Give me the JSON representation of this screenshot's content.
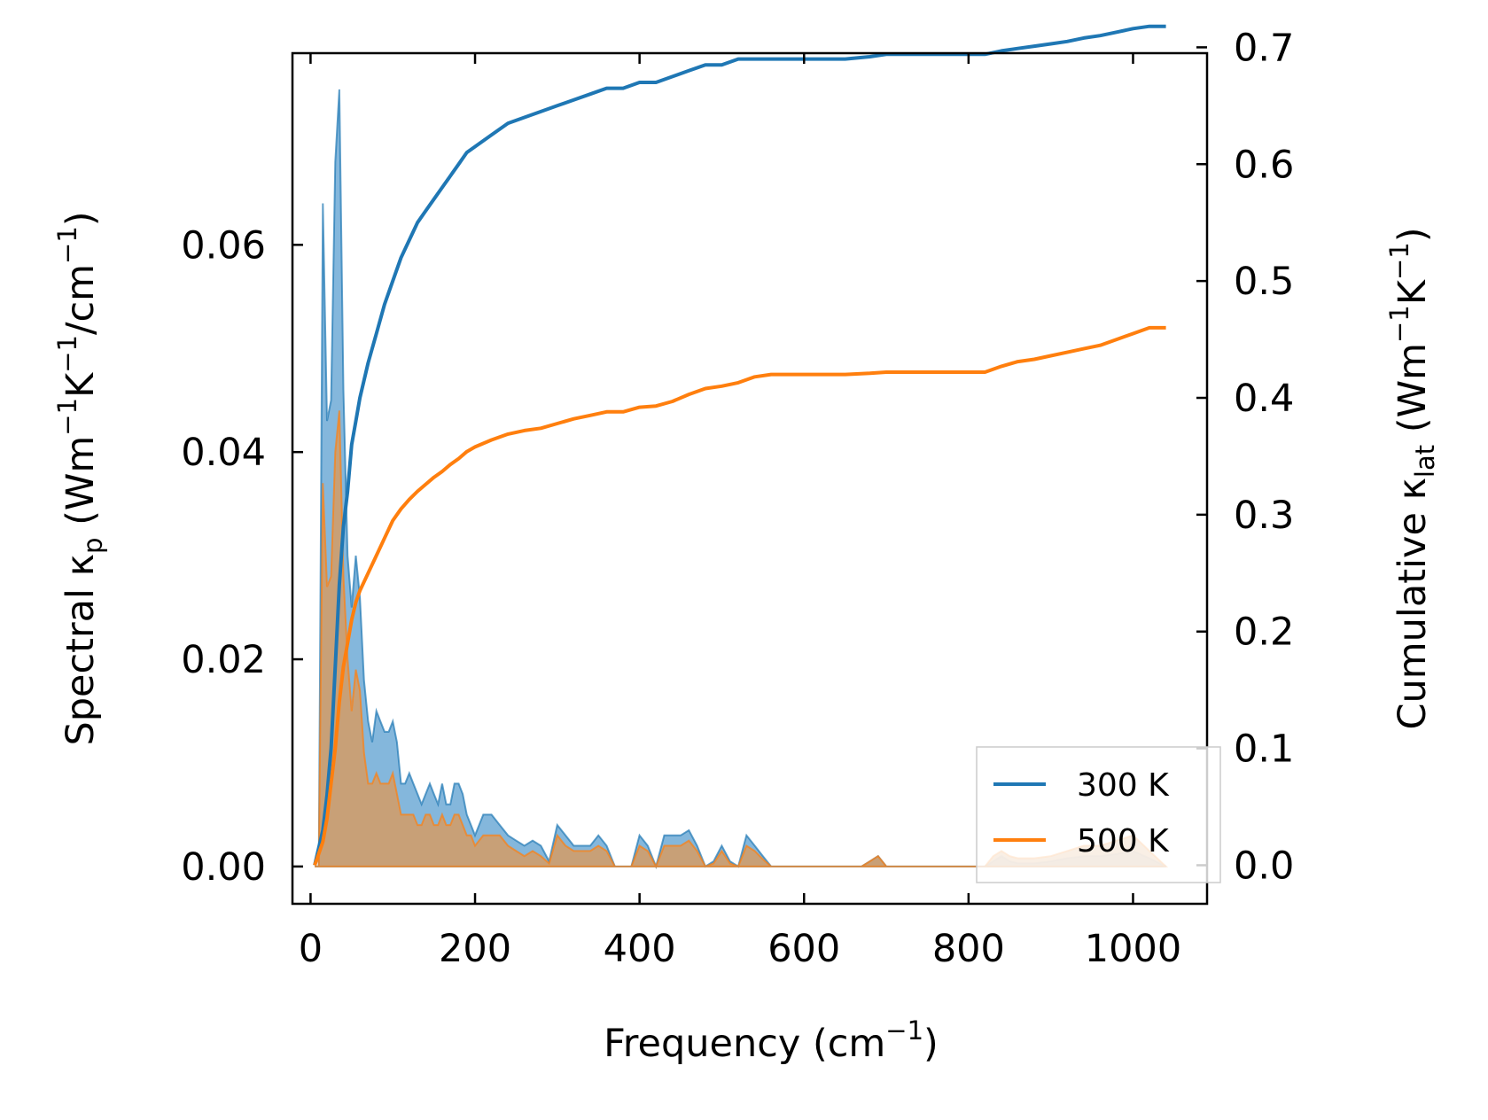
{
  "chart_data": {
    "type": "line",
    "xlabel": {
      "main": "Frequency (cm",
      "sup": "−1",
      "tail": ")"
    },
    "ylabel_left": {
      "p1": "Spectral κ",
      "sub": "p",
      "p2": " (Wm",
      "sup1": "−1",
      "p3": "K",
      "sup2": "−1",
      "p4": "/cm",
      "sup3": "−1",
      "p5": ")"
    },
    "ylabel_right": {
      "p1": "Cumulative κ",
      "sub": "lat",
      "p2": " (Wm",
      "sup1": "−1",
      "p3": "K",
      "sup2": "−1",
      "p4": ")"
    },
    "xlim": [
      -22,
      1090
    ],
    "ylim_left": [
      -0.0036,
      0.0785
    ],
    "ylim_right": [
      -0.033,
      0.695
    ],
    "x_ticks": [
      0,
      200,
      400,
      600,
      800,
      1000
    ],
    "x_tick_labels": [
      "0",
      "200",
      "400",
      "600",
      "800",
      "1000"
    ],
    "y_left_ticks": [
      0.0,
      0.02,
      0.04,
      0.06
    ],
    "y_left_tick_labels": [
      "0.00",
      "0.02",
      "0.04",
      "0.06"
    ],
    "y_right_ticks": [
      0.0,
      0.1,
      0.2,
      0.3,
      0.4,
      0.5,
      0.6,
      0.7
    ],
    "y_right_tick_labels": [
      "0.0",
      "0.1",
      "0.2",
      "0.3",
      "0.4",
      "0.5",
      "0.6",
      "0.7"
    ],
    "legend": {
      "position": "lower right",
      "entries": [
        "300 K",
        "500 K"
      ]
    },
    "colors": {
      "s300": "#1f77b4",
      "s500": "#ff7f0e",
      "fill300": "#5b9fd0",
      "fill500": "#d99a5e",
      "axis": "#000000",
      "legend_border": "#cccccc"
    },
    "series": [
      {
        "name": "300 K",
        "spectral": {
          "x": [
            5,
            10,
            15,
            20,
            25,
            30,
            35,
            40,
            45,
            50,
            55,
            60,
            65,
            70,
            75,
            80,
            85,
            90,
            95,
            100,
            105,
            110,
            115,
            120,
            125,
            130,
            135,
            140,
            145,
            150,
            155,
            160,
            165,
            170,
            175,
            180,
            185,
            190,
            195,
            200,
            210,
            220,
            230,
            240,
            250,
            260,
            270,
            280,
            290,
            300,
            310,
            320,
            330,
            340,
            350,
            360,
            370,
            380,
            390,
            400,
            410,
            420,
            430,
            440,
            450,
            460,
            470,
            480,
            490,
            500,
            510,
            520,
            530,
            540,
            550,
            560,
            580,
            600,
            650,
            670,
            680,
            690,
            700,
            720,
            760,
            800,
            820,
            830,
            840,
            850,
            860,
            880,
            900,
            920,
            940,
            960,
            980,
            1000,
            1020,
            1040
          ],
          "y": [
            0.0,
            0.0,
            0.064,
            0.043,
            0.045,
            0.068,
            0.075,
            0.046,
            0.03,
            0.025,
            0.03,
            0.026,
            0.018,
            0.014,
            0.012,
            0.015,
            0.014,
            0.013,
            0.013,
            0.014,
            0.012,
            0.008,
            0.008,
            0.009,
            0.008,
            0.007,
            0.006,
            0.007,
            0.008,
            0.007,
            0.006,
            0.008,
            0.006,
            0.006,
            0.008,
            0.008,
            0.007,
            0.005,
            0.004,
            0.003,
            0.005,
            0.005,
            0.004,
            0.003,
            0.0025,
            0.002,
            0.0025,
            0.002,
            0.0005,
            0.004,
            0.003,
            0.002,
            0.002,
            0.002,
            0.003,
            0.002,
            0.0,
            0.0,
            0.0,
            0.003,
            0.002,
            0.0,
            0.003,
            0.003,
            0.003,
            0.0035,
            0.002,
            0.0,
            0.0005,
            0.002,
            0.0005,
            0.0,
            0.003,
            0.002,
            0.001,
            0.0,
            0.0,
            0.0,
            0.0,
            0.0,
            0.0005,
            0.001,
            0.0,
            0.0,
            0.0,
            0.0,
            0.0,
            0.0005,
            0.001,
            0.0005,
            0.0003,
            0.0003,
            0.0005,
            0.0008,
            0.001,
            0.001,
            0.0012,
            0.0015,
            0.0008,
            0.0
          ]
        },
        "cumulative": {
          "x": [
            5,
            10,
            15,
            20,
            25,
            30,
            35,
            40,
            45,
            50,
            55,
            60,
            70,
            80,
            90,
            100,
            110,
            120,
            130,
            140,
            150,
            160,
            170,
            180,
            190,
            200,
            220,
            240,
            260,
            280,
            300,
            320,
            340,
            360,
            380,
            400,
            420,
            440,
            460,
            480,
            500,
            520,
            540,
            560,
            600,
            650,
            680,
            700,
            750,
            800,
            820,
            840,
            860,
            880,
            900,
            920,
            940,
            960,
            980,
            1000,
            1020,
            1040
          ],
          "y": [
            0.0,
            0.015,
            0.03,
            0.06,
            0.1,
            0.17,
            0.24,
            0.29,
            0.32,
            0.36,
            0.38,
            0.4,
            0.43,
            0.455,
            0.48,
            0.5,
            0.52,
            0.535,
            0.55,
            0.56,
            0.57,
            0.58,
            0.59,
            0.6,
            0.61,
            0.615,
            0.625,
            0.635,
            0.64,
            0.645,
            0.65,
            0.655,
            0.66,
            0.665,
            0.665,
            0.67,
            0.67,
            0.675,
            0.68,
            0.685,
            0.685,
            0.69,
            0.69,
            0.69,
            0.69,
            0.69,
            0.692,
            0.694,
            0.694,
            0.694,
            0.694,
            0.697,
            0.699,
            0.701,
            0.703,
            0.705,
            0.708,
            0.71,
            0.713,
            0.716,
            0.718,
            0.718
          ]
        }
      },
      {
        "name": "500 K",
        "spectral": {
          "x": [
            5,
            10,
            15,
            20,
            25,
            30,
            35,
            40,
            45,
            50,
            55,
            60,
            65,
            70,
            75,
            80,
            85,
            90,
            95,
            100,
            105,
            110,
            115,
            120,
            125,
            130,
            135,
            140,
            145,
            150,
            155,
            160,
            165,
            170,
            175,
            180,
            185,
            190,
            195,
            200,
            210,
            220,
            230,
            240,
            250,
            260,
            270,
            280,
            290,
            300,
            310,
            320,
            330,
            340,
            350,
            360,
            370,
            380,
            390,
            400,
            410,
            420,
            430,
            440,
            450,
            460,
            470,
            480,
            490,
            500,
            510,
            520,
            530,
            540,
            550,
            560,
            580,
            600,
            650,
            670,
            680,
            690,
            700,
            720,
            760,
            800,
            820,
            830,
            840,
            850,
            860,
            880,
            900,
            920,
            940,
            960,
            980,
            1000,
            1020,
            1040
          ],
          "y": [
            0.0,
            0.0,
            0.037,
            0.027,
            0.028,
            0.04,
            0.044,
            0.028,
            0.02,
            0.015,
            0.019,
            0.017,
            0.011,
            0.008,
            0.008,
            0.009,
            0.008,
            0.008,
            0.008,
            0.009,
            0.007,
            0.005,
            0.005,
            0.005,
            0.005,
            0.004,
            0.004,
            0.005,
            0.005,
            0.004,
            0.004,
            0.005,
            0.004,
            0.004,
            0.005,
            0.005,
            0.004,
            0.003,
            0.003,
            0.002,
            0.003,
            0.003,
            0.003,
            0.002,
            0.0015,
            0.001,
            0.0015,
            0.001,
            0.0003,
            0.003,
            0.002,
            0.0015,
            0.0015,
            0.0015,
            0.002,
            0.0015,
            0.0,
            0.0,
            0.0,
            0.002,
            0.0015,
            0.0,
            0.002,
            0.002,
            0.002,
            0.0025,
            0.0015,
            0.0,
            0.0003,
            0.0015,
            0.0003,
            0.0,
            0.002,
            0.0015,
            0.0007,
            0.0,
            0.0,
            0.0,
            0.0,
            0.0,
            0.0005,
            0.001,
            0.0,
            0.0,
            0.0,
            0.0,
            0.0,
            0.001,
            0.0015,
            0.001,
            0.0008,
            0.0008,
            0.001,
            0.0015,
            0.002,
            0.002,
            0.0025,
            0.003,
            0.0015,
            0.0
          ]
        },
        "cumulative": {
          "x": [
            5,
            10,
            15,
            20,
            25,
            30,
            35,
            40,
            45,
            50,
            55,
            60,
            70,
            80,
            90,
            100,
            110,
            120,
            130,
            140,
            150,
            160,
            170,
            180,
            190,
            200,
            220,
            240,
            260,
            280,
            300,
            320,
            340,
            360,
            380,
            400,
            420,
            440,
            460,
            480,
            500,
            520,
            540,
            560,
            600,
            650,
            680,
            700,
            750,
            800,
            820,
            840,
            860,
            880,
            900,
            920,
            940,
            960,
            980,
            1000,
            1020,
            1040
          ],
          "y": [
            0.0,
            0.01,
            0.02,
            0.04,
            0.07,
            0.1,
            0.14,
            0.17,
            0.19,
            0.21,
            0.225,
            0.235,
            0.25,
            0.265,
            0.28,
            0.295,
            0.305,
            0.313,
            0.32,
            0.326,
            0.332,
            0.337,
            0.343,
            0.348,
            0.354,
            0.358,
            0.364,
            0.369,
            0.372,
            0.374,
            0.378,
            0.382,
            0.385,
            0.388,
            0.388,
            0.392,
            0.393,
            0.397,
            0.403,
            0.408,
            0.41,
            0.413,
            0.418,
            0.42,
            0.42,
            0.42,
            0.421,
            0.422,
            0.422,
            0.422,
            0.422,
            0.427,
            0.431,
            0.433,
            0.436,
            0.439,
            0.442,
            0.445,
            0.45,
            0.455,
            0.46,
            0.46
          ]
        }
      }
    ]
  }
}
